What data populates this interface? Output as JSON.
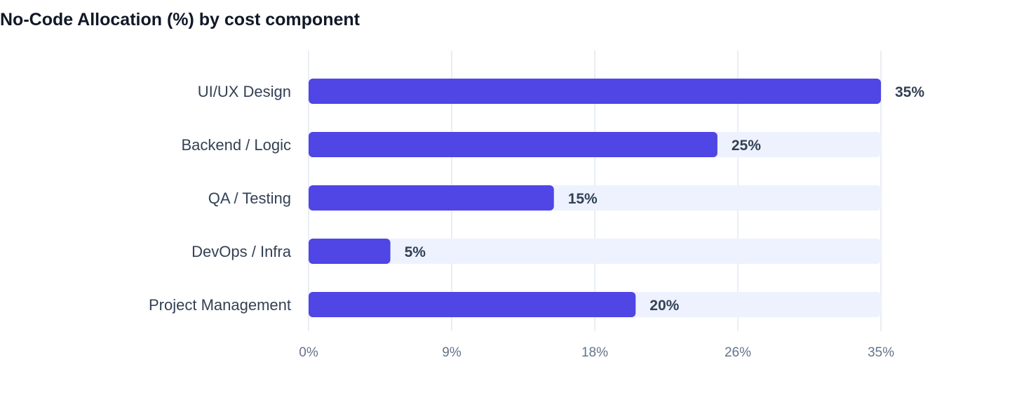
{
  "chart_data": {
    "type": "bar",
    "orientation": "horizontal",
    "title": "No-Code Allocation (%) by cost component",
    "categories": [
      "UI/UX Design",
      "Backend / Logic",
      "QA / Testing",
      "DevOps / Infra",
      "Project Management"
    ],
    "values": [
      35,
      25,
      15,
      5,
      20
    ],
    "value_labels": [
      "35%",
      "25%",
      "15%",
      "5%",
      "20%"
    ],
    "xlim": [
      0,
      35
    ],
    "x_ticks": [
      0,
      8.75,
      17.5,
      26.25,
      35
    ],
    "x_tick_labels": [
      "0%",
      "9%",
      "18%",
      "26%",
      "35%"
    ],
    "grid": true,
    "colors": {
      "bar": "#4f46e5",
      "track": "#eef2ff",
      "grid": "#e2e8f0"
    }
  }
}
